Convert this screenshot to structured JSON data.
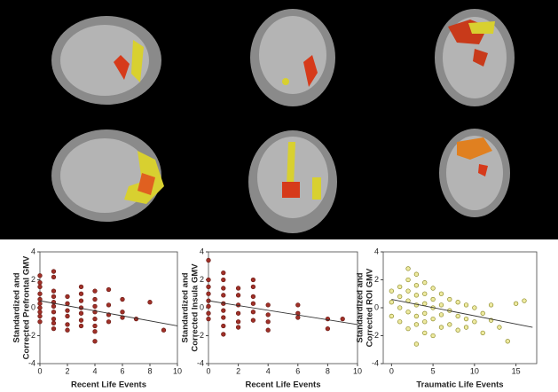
{
  "chart_data": [
    {
      "type": "scatter",
      "xlabel": "Recent Life Events",
      "ylabel": [
        "Standardized and",
        "Corrected Prefrontal GMV"
      ],
      "xlim": [
        0,
        10
      ],
      "ylim": [
        -4,
        4
      ],
      "xticks": [
        0,
        2,
        4,
        6,
        8,
        10
      ],
      "yticks": [
        -4,
        -2,
        0,
        2,
        4
      ],
      "marker_fill": "#a03028",
      "marker_edge": "#6a1a14",
      "x": [
        0,
        0,
        0,
        0,
        0,
        0,
        0,
        0,
        0,
        0,
        1,
        1,
        1,
        1,
        1,
        1,
        1,
        1,
        1,
        1,
        2,
        2,
        2,
        2,
        2,
        2,
        3,
        3,
        3,
        3,
        3,
        3,
        3,
        4,
        4,
        4,
        4,
        4,
        4,
        4,
        4,
        5,
        5,
        5,
        5,
        6,
        6,
        6,
        7,
        8,
        9
      ],
      "y": [
        2.3,
        1.5,
        1.0,
        0.6,
        0.3,
        0,
        -0.3,
        -0.6,
        -1.0,
        1.8,
        2.6,
        2.2,
        1.2,
        0.8,
        0.4,
        0.1,
        -0.3,
        -0.8,
        -1.1,
        -1.5,
        0.8,
        0.3,
        -0.2,
        -0.6,
        -1.2,
        -1.6,
        1.5,
        1.0,
        0.5,
        0,
        -0.4,
        -0.9,
        -1.3,
        1.2,
        0.6,
        0.1,
        -0.3,
        -0.8,
        -1.3,
        -1.7,
        -2.4,
        1.3,
        0.2,
        -0.5,
        -1.0,
        0.6,
        -0.3,
        -0.7,
        -0.8,
        0.4,
        -1.6
      ],
      "fit_line": {
        "x": [
          0,
          10
        ],
        "y": [
          0.5,
          -1.3
        ]
      }
    },
    {
      "type": "scatter",
      "xlabel": "Recent Life Events",
      "ylabel": [
        "Standardized and",
        "Corrected Insula GMV"
      ],
      "xlim": [
        0,
        10
      ],
      "ylim": [
        -4,
        4
      ],
      "xticks": [
        0,
        2,
        4,
        6,
        8,
        10
      ],
      "yticks": [
        -4,
        -2,
        0,
        2,
        4
      ],
      "marker_fill": "#a03028",
      "marker_edge": "#6a1a14",
      "x": [
        0,
        0,
        0,
        0,
        0,
        0,
        0,
        0,
        1,
        1,
        1,
        1,
        1,
        1,
        1,
        1,
        1,
        2,
        2,
        2,
        2,
        2,
        2,
        3,
        3,
        3,
        3,
        3,
        3,
        4,
        4,
        4,
        4,
        6,
        6,
        6,
        8,
        8,
        9
      ],
      "y": [
        3.4,
        2.0,
        1.5,
        1.0,
        0.5,
        0.1,
        -0.4,
        -0.8,
        2.5,
        2.0,
        1.4,
        0.9,
        0.3,
        -0.2,
        -0.7,
        -1.3,
        -1.9,
        1.4,
        0.9,
        0.2,
        -0.4,
        -1.0,
        -1.4,
        2.0,
        1.5,
        0.8,
        0.3,
        -0.3,
        -0.9,
        0.2,
        -0.5,
        -1.0,
        -1.6,
        0.2,
        -0.4,
        -0.7,
        -0.8,
        -1.5,
        -0.8
      ],
      "fit_line": {
        "x": [
          0,
          10
        ],
        "y": [
          0.5,
          -1.2
        ]
      }
    },
    {
      "type": "scatter",
      "xlabel": "Traumatic Life Events",
      "ylabel": [
        "Standardized and",
        "Corrected ROI GMV"
      ],
      "xlim": [
        -1,
        17.5
      ],
      "ylim": [
        -4,
        4
      ],
      "xticks": [
        0,
        5,
        10,
        15
      ],
      "yticks": [
        -4,
        -2,
        0,
        2,
        4
      ],
      "marker_fill": "#eeeaa0",
      "marker_edge": "#8c8a28",
      "x": [
        0,
        0,
        0,
        1,
        1,
        1,
        1,
        2,
        2,
        2,
        2,
        2,
        2,
        3,
        3,
        3,
        3,
        3,
        3,
        3,
        4,
        4,
        4,
        4,
        4,
        4,
        5,
        5,
        5,
        5,
        5,
        6,
        6,
        6,
        6,
        7,
        7,
        7,
        8,
        8,
        8,
        9,
        9,
        9,
        10,
        10,
        11,
        11,
        12,
        12,
        13,
        14,
        15,
        16
      ],
      "y": [
        1.2,
        0.4,
        -0.6,
        1.5,
        0.8,
        0,
        -1.0,
        2.8,
        2.0,
        1.2,
        0.5,
        -0.3,
        -1.5,
        2.4,
        1.6,
        0.9,
        0.2,
        -0.6,
        -1.2,
        -2.6,
        1.8,
        1.0,
        0.3,
        -0.4,
        -1.0,
        -1.8,
        1.4,
        0.6,
        0,
        -0.8,
        -2.0,
        1.0,
        0.2,
        -0.5,
        -1.4,
        0.6,
        -0.2,
        -1.2,
        0.4,
        -0.6,
        -1.6,
        0.2,
        -0.8,
        -1.4,
        0,
        -1.0,
        -0.4,
        -1.8,
        0.2,
        -0.9,
        -1.4,
        -2.4,
        0.3,
        0.5
      ],
      "fit_line": {
        "x": [
          0,
          17
        ],
        "y": [
          0.6,
          -1.4
        ]
      }
    }
  ]
}
